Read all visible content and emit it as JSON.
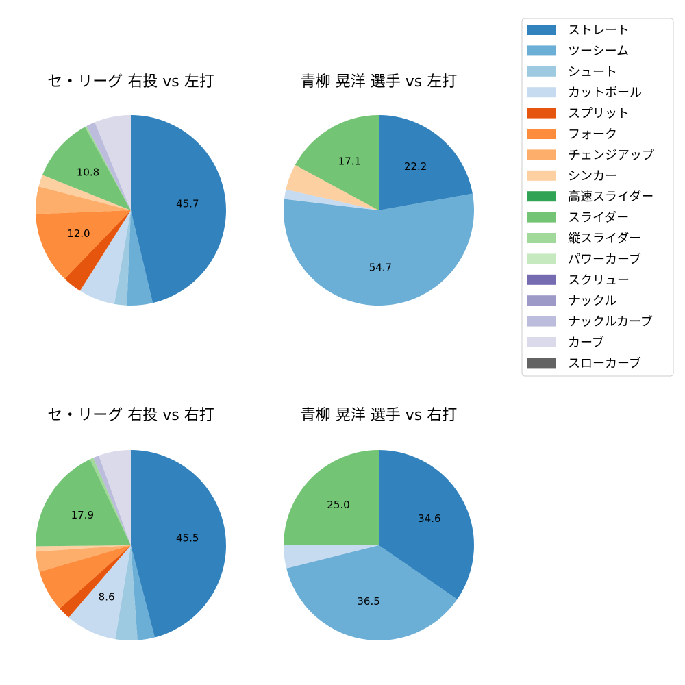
{
  "chart_data": [
    {
      "type": "pie",
      "title": "セ・リーグ 右投 vs 左打",
      "labels": [
        "ストレート",
        "ツーシーム",
        "シュート",
        "カットボール",
        "スプリット",
        "フォーク",
        "チェンジアップ",
        "シンカー",
        "スライダー",
        "縦スライダー",
        "ナックルカーブ",
        "カーブ"
      ],
      "values": [
        45.7,
        4.3,
        2.1,
        6.1,
        3.2,
        12.0,
        4.6,
        2.0,
        10.8,
        0.3,
        1.5,
        6.1
      ],
      "value_labels": [
        "45.7",
        "",
        "",
        "",
        "",
        "12.0",
        "",
        "",
        "10.8",
        "",
        "",
        ""
      ]
    },
    {
      "type": "pie",
      "title": "青柳 晃洋 選手 vs 左打",
      "labels": [
        "ストレート",
        "ツーシーム",
        "カットボール",
        "シンカー",
        "スライダー"
      ],
      "values": [
        22.2,
        54.7,
        1.6,
        4.4,
        17.1
      ],
      "value_labels": [
        "22.2",
        "54.7",
        "",
        "",
        "17.1"
      ]
    },
    {
      "type": "pie",
      "title": "セ・リーグ 右投 vs 右打",
      "labels": [
        "ストレート",
        "ツーシーム",
        "シュート",
        "カットボール",
        "スプリット",
        "フォーク",
        "チェンジアップ",
        "シンカー",
        "スライダー",
        "縦スライダー",
        "ナックルカーブ",
        "カーブ"
      ],
      "values": [
        45.5,
        2.9,
        3.7,
        8.6,
        2.1,
        7.0,
        3.4,
        0.9,
        17.9,
        0.6,
        1.0,
        5.4
      ],
      "value_labels": [
        "45.5",
        "",
        "",
        "8.6",
        "",
        "",
        "",
        "",
        "17.9",
        "",
        "",
        ""
      ]
    },
    {
      "type": "pie",
      "title": "青柳 晃洋 選手 vs 右打",
      "labels": [
        "ストレート",
        "ツーシーム",
        "カットボール",
        "スライダー"
      ],
      "values": [
        34.6,
        36.5,
        3.9,
        25.0
      ],
      "value_labels": [
        "34.6",
        "36.5",
        "",
        "25.0"
      ]
    }
  ],
  "legend": {
    "placement": "top-right",
    "items": [
      {
        "label": "ストレート",
        "color": "#3182bd"
      },
      {
        "label": "ツーシーム",
        "color": "#6baed6"
      },
      {
        "label": "シュート",
        "color": "#9ecae1"
      },
      {
        "label": "カットボール",
        "color": "#c6dbef"
      },
      {
        "label": "スプリット",
        "color": "#e6550d"
      },
      {
        "label": "フォーク",
        "color": "#fd8d3c"
      },
      {
        "label": "チェンジアップ",
        "color": "#fdae6b"
      },
      {
        "label": "シンカー",
        "color": "#fdd0a2"
      },
      {
        "label": "高速スライダー",
        "color": "#31a354"
      },
      {
        "label": "スライダー",
        "color": "#74c476"
      },
      {
        "label": "縦スライダー",
        "color": "#a1d99b"
      },
      {
        "label": "パワーカーブ",
        "color": "#c7e9c0"
      },
      {
        "label": "スクリュー",
        "color": "#756bb1"
      },
      {
        "label": "ナックル",
        "color": "#9e9ac8"
      },
      {
        "label": "ナックルカーブ",
        "color": "#bcbddc"
      },
      {
        "label": "カーブ",
        "color": "#dadaeb"
      },
      {
        "label": "スローカーブ",
        "color": "#636363"
      }
    ]
  }
}
